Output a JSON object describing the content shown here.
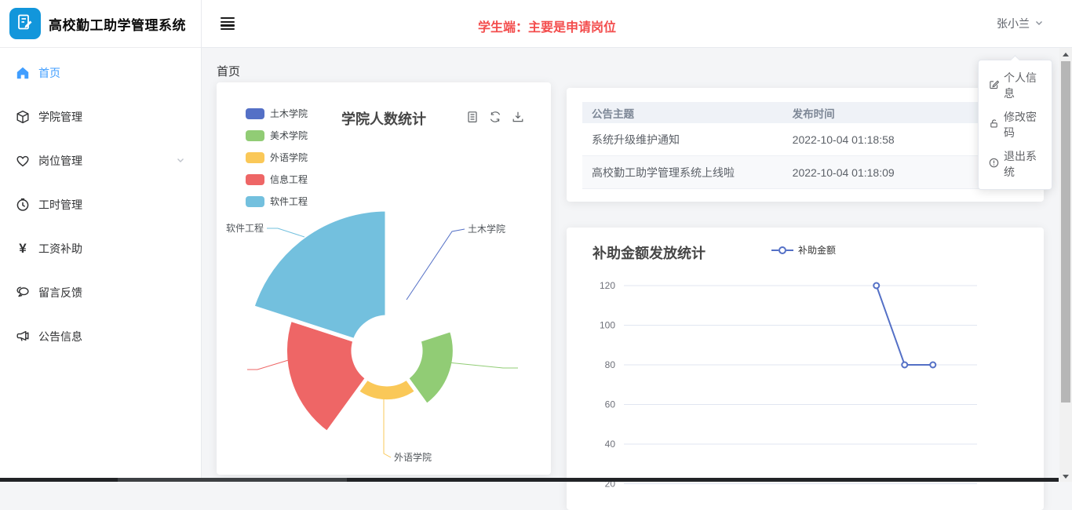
{
  "app": {
    "title": "高校勤工助学管理系统"
  },
  "header": {
    "notice": "学生端：主要是申请岗位",
    "user_name": "张小兰"
  },
  "breadcrumb": "首页",
  "sidebar": {
    "items": [
      {
        "label": "首页",
        "icon": "home-icon",
        "active": true
      },
      {
        "label": "学院管理",
        "icon": "cube-icon",
        "active": false
      },
      {
        "label": "岗位管理",
        "icon": "heart-icon",
        "active": false,
        "expandable": true
      },
      {
        "label": "工时管理",
        "icon": "clock-icon",
        "active": false
      },
      {
        "label": "工资补助",
        "icon": "yen-icon",
        "icon_glyph": "¥",
        "active": false
      },
      {
        "label": "留言反馈",
        "icon": "chat-icon",
        "active": false
      },
      {
        "label": "公告信息",
        "icon": "megaphone-icon",
        "active": false
      }
    ]
  },
  "user_menu": {
    "items": [
      {
        "label": "个人信息",
        "icon": "edit-square-icon"
      },
      {
        "label": "修改密码",
        "icon": "unlock-icon"
      },
      {
        "label": "退出系统",
        "icon": "info-circle-icon"
      }
    ]
  },
  "announcements": {
    "headers": [
      "公告主题",
      "发布时间"
    ],
    "rows": [
      [
        "系统升级维护通知",
        "2022-10-04 01:18:58"
      ],
      [
        "高校勤工助学管理系统上线啦",
        "2022-10-04 01:18:09"
      ]
    ]
  },
  "chart_data": [
    {
      "type": "pie",
      "subtype": "nightingale-rose-donut",
      "title": "学院人数统计",
      "categories": [
        "土木学院",
        "美术学院",
        "外语学院",
        "信息工程",
        "软件工程"
      ],
      "values": [
        1,
        6,
        3,
        12,
        19
      ],
      "colors": [
        "#5470c6",
        "#91cc75",
        "#fac858",
        "#ee6666",
        "#73c0de"
      ],
      "legend_position": "top-left",
      "visible_slice_labels": [
        "土木学院",
        "外语学院",
        "软件工程"
      ],
      "toolbox": [
        "data-view-icon",
        "refresh-icon",
        "download-icon"
      ]
    },
    {
      "type": "line",
      "title": "补助金额发放统计",
      "series": [
        {
          "name": "补助金额",
          "values": [
            120,
            80,
            80
          ],
          "color": "#5470c6"
        }
      ],
      "y_ticks": [
        120,
        100,
        80,
        60,
        40,
        20
      ],
      "ylim": [
        20,
        130
      ],
      "x_labels_visible": false,
      "grid": true,
      "legend_position": "top-center"
    }
  ],
  "colors": {
    "accent": "#409eff",
    "notice_red": "#f34d4d",
    "logo_blue": "#1296db"
  }
}
